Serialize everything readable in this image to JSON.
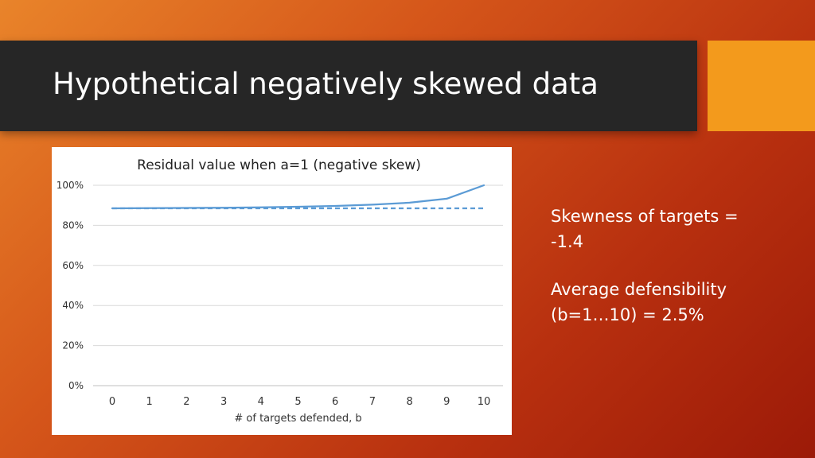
{
  "slide": {
    "title": "Hypothetical negatively skewed data",
    "colors": {
      "title_bar": "#262626",
      "accent": "#f39a1c"
    }
  },
  "notes": {
    "skewness_line1": "Skewness of targets =",
    "skewness_line2": "-1.4",
    "defensibility_line1": "Average defensibility",
    "defensibility_line2": "(b=1…10) = 2.5%"
  },
  "chart_data": {
    "type": "line",
    "title": "Residual value when a=1 (negative skew)",
    "xlabel": "# of targets defended, b",
    "ylabel": "",
    "x": [
      0,
      1,
      2,
      3,
      4,
      5,
      6,
      7,
      8,
      9,
      10
    ],
    "x_tick_labels": [
      "0",
      "1",
      "2",
      "3",
      "4",
      "5",
      "6",
      "7",
      "8",
      "9",
      "10"
    ],
    "y_tick_labels": [
      "0%",
      "20%",
      "40%",
      "60%",
      "80%",
      "100%"
    ],
    "y_ticks": [
      0,
      20,
      40,
      60,
      80,
      100
    ],
    "ylim": [
      0,
      100
    ],
    "grid": true,
    "legend": "none",
    "series": [
      {
        "style": "solid",
        "color": "#5b9bd5",
        "values": [
          88.5,
          88.6,
          88.7,
          88.8,
          89.0,
          89.3,
          89.7,
          90.3,
          91.3,
          93.3,
          100
        ]
      },
      {
        "style": "dashed",
        "color": "#5b9bd5",
        "values": [
          88.5,
          88.5,
          88.5,
          88.5,
          88.5,
          88.5,
          88.5,
          88.5,
          88.5,
          88.5,
          88.5
        ]
      }
    ]
  }
}
